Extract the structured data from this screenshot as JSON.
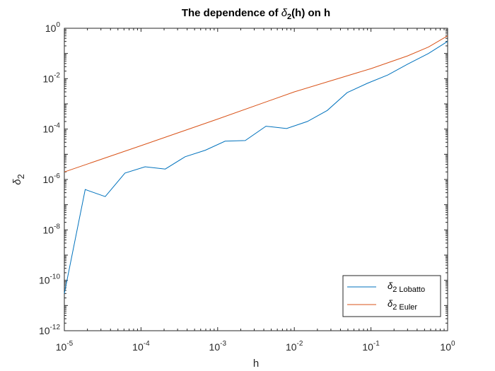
{
  "chart_data": {
    "type": "line",
    "title": {
      "prefix": "The dependence of ",
      "symbol": "δ",
      "sub": "2",
      "suffix": "(h) on h"
    },
    "xlabel": "h",
    "ylabel": {
      "symbol": "δ",
      "sub": "2"
    },
    "xscale": "log",
    "yscale": "log",
    "xlim": [
      1e-05,
      1
    ],
    "ylim": [
      1e-12,
      1
    ],
    "grid": false,
    "legend_position": "bottom-right",
    "x_ticks": [
      {
        "value": 1e-05,
        "base": "10",
        "exp": "-5"
      },
      {
        "value": 0.0001,
        "base": "10",
        "exp": "-4"
      },
      {
        "value": 0.001,
        "base": "10",
        "exp": "-3"
      },
      {
        "value": 0.01,
        "base": "10",
        "exp": "-2"
      },
      {
        "value": 0.1,
        "base": "10",
        "exp": "-1"
      },
      {
        "value": 1,
        "base": "10",
        "exp": "0"
      }
    ],
    "y_ticks": [
      {
        "value": 1,
        "base": "10",
        "exp": "0"
      },
      {
        "value": 0.01,
        "base": "10",
        "exp": "-2"
      },
      {
        "value": 0.0001,
        "base": "10",
        "exp": "-4"
      },
      {
        "value": 1e-06,
        "base": "10",
        "exp": "-6"
      },
      {
        "value": 1e-08,
        "base": "10",
        "exp": "-8"
      },
      {
        "value": 1e-10,
        "base": "10",
        "exp": "-10"
      },
      {
        "value": 1e-12,
        "base": "10",
        "exp": "-12"
      }
    ],
    "series": [
      {
        "name": {
          "symbol": "δ",
          "sub": "2 Lobatto"
        },
        "color": "#0072BD",
        "points": [
          [
            1e-05,
            3e-11
          ],
          [
            1.87e-05,
            4e-07
          ],
          [
            3.41e-05,
            2.1e-07
          ],
          [
            6.17e-05,
            1.8e-06
          ],
          [
            0.000113,
            3.2e-06
          ],
          [
            0.000207,
            2.6e-06
          ],
          [
            0.000376,
            8e-06
          ],
          [
            0.000689,
            1.45e-05
          ],
          [
            0.00125,
            3.3e-05
          ],
          [
            0.00229,
            3.5e-05
          ],
          [
            0.00427,
            0.00013
          ],
          [
            0.00794,
            0.000105
          ],
          [
            0.0148,
            0.0002
          ],
          [
            0.0269,
            0.00055
          ],
          [
            0.0489,
            0.0028
          ],
          [
            0.0891,
            0.0065
          ],
          [
            0.166,
            0.014
          ],
          [
            0.302,
            0.038
          ],
          [
            0.562,
            0.1
          ],
          [
            1,
            0.3
          ]
        ]
      },
      {
        "name": {
          "symbol": "δ",
          "sub": "2 Euler"
        },
        "color": "#D95319",
        "points": [
          [
            1e-05,
            2e-06
          ],
          [
            0.0001,
            2.2e-05
          ],
          [
            0.001,
            0.00025
          ],
          [
            0.01,
            0.003
          ],
          [
            0.1,
            0.025
          ],
          [
            0.3,
            0.08
          ],
          [
            0.562,
            0.18
          ],
          [
            1,
            0.5
          ]
        ]
      }
    ]
  }
}
